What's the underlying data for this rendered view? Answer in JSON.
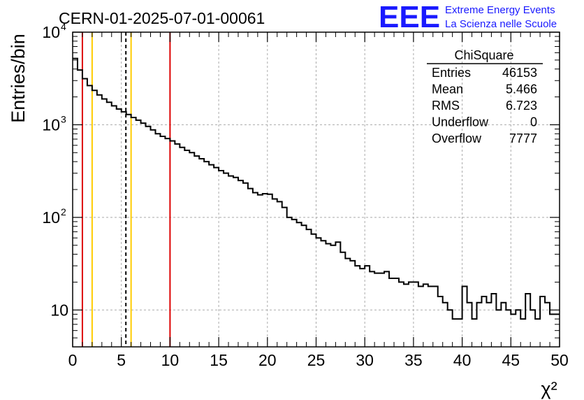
{
  "chart_data": {
    "type": "histogram",
    "title": "CERN-01-2025-07-01-00061",
    "xlabel": "χ²",
    "ylabel": "Entries/bin",
    "xlim": [
      0,
      50
    ],
    "ylim": [
      4,
      10000
    ],
    "yscale": "log",
    "grid": true,
    "bin_width": 0.5,
    "x_ticks": [
      "0",
      "5",
      "10",
      "15",
      "20",
      "25",
      "30",
      "35",
      "40",
      "45",
      "50"
    ],
    "y_ticks": [
      {
        "value": 10,
        "label": "10"
      },
      {
        "value": 100,
        "label": "10",
        "exp": "2"
      },
      {
        "value": 1000,
        "label": "10",
        "exp": "3"
      },
      {
        "value": 10000,
        "label": "10",
        "exp": "4"
      }
    ],
    "values": [
      5200,
      3900,
      3150,
      2650,
      2350,
      2100,
      1900,
      1750,
      1600,
      1480,
      1380,
      1290,
      1200,
      1120,
      1040,
      960,
      880,
      800,
      750,
      710,
      670,
      620,
      570,
      530,
      500,
      460,
      430,
      400,
      370,
      345,
      320,
      300,
      280,
      270,
      250,
      235,
      205,
      185,
      175,
      180,
      178,
      158,
      148,
      128,
      100,
      95,
      88,
      82,
      74,
      66,
      60,
      56,
      52,
      50,
      54,
      42,
      36,
      34,
      30,
      28,
      30,
      26,
      25,
      25,
      26,
      22,
      22,
      20,
      19,
      20,
      20,
      18,
      19,
      18,
      18,
      14,
      12,
      10,
      8,
      8,
      18,
      12,
      8,
      12,
      14,
      12,
      15,
      10,
      12,
      10,
      9,
      10,
      8,
      15,
      10,
      8,
      14,
      12,
      9,
      9
    ],
    "vertical_lines": [
      {
        "x": 1.0,
        "color": "#dd0000",
        "style": "solid"
      },
      {
        "x": 2.0,
        "color": "#ffcc00",
        "style": "solid"
      },
      {
        "x": 5.466,
        "color": "#000000",
        "style": "dashed"
      },
      {
        "x": 6.0,
        "color": "#ffcc00",
        "style": "solid"
      },
      {
        "x": 10.0,
        "color": "#dd0000",
        "style": "solid"
      }
    ],
    "stats_box": {
      "title": "ChiSquare",
      "rows": [
        {
          "label": "Entries",
          "value": "46153"
        },
        {
          "label": "Mean",
          "value": "5.466"
        },
        {
          "label": "RMS",
          "value": "6.723"
        },
        {
          "label": "Underflow",
          "value": "0"
        },
        {
          "label": "Overflow",
          "value": "7777"
        }
      ]
    }
  },
  "logo": {
    "text": "EEE",
    "line1": "Extreme Energy Events",
    "line2": "La Scienza nelle Scuole",
    "color": "#1a1aff"
  }
}
